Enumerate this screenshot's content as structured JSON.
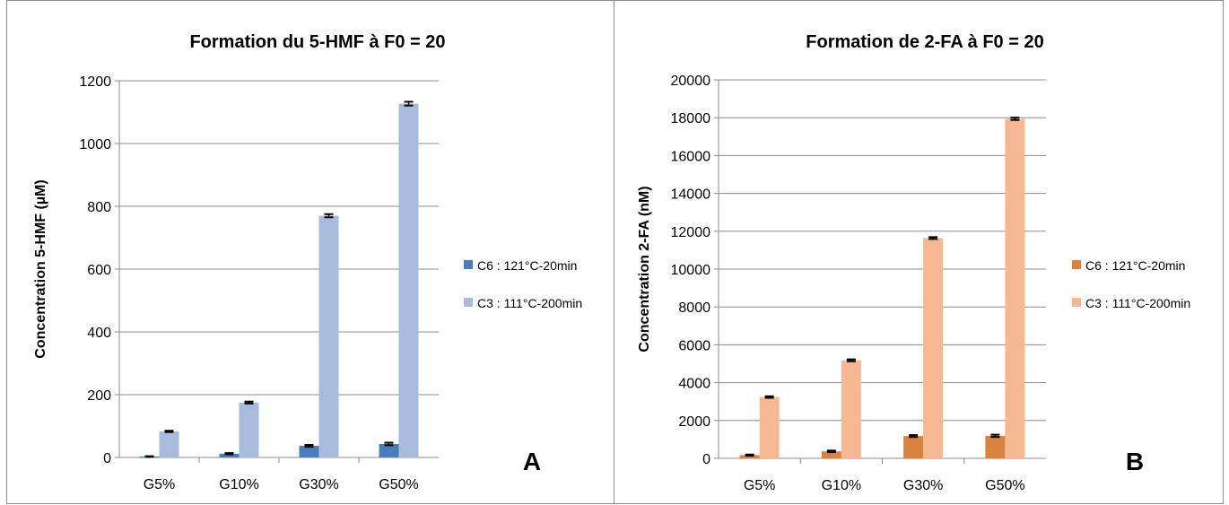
{
  "colors": {
    "a_c6": "#4a7ebb",
    "a_c3": "#a9bbdc",
    "b_c6": "#d9833f",
    "b_c3": "#f6b793",
    "grid": "#8c8c8c",
    "axis": "#8c8c8c"
  },
  "chart_data": [
    {
      "type": "bar",
      "title": "Formation du 5-HMF à F0 = 20",
      "xlabel": "",
      "ylabel": "Concentration 5-HMF (µM)",
      "categories": [
        "G5%",
        "G10%",
        "G30%",
        "G50%"
      ],
      "ylim": [
        0,
        1200
      ],
      "yticks": [
        0,
        200,
        400,
        600,
        800,
        1000,
        1200
      ],
      "grid": true,
      "legend": "right",
      "series": [
        {
          "name": "C6 : 121°C-20min",
          "values": [
            3,
            12,
            37,
            43
          ],
          "error": [
            1,
            2,
            3,
            4
          ],
          "color": "#4a7ebb"
        },
        {
          "name": "C3 : 111°C-200min",
          "values": [
            83,
            175,
            770,
            1127
          ],
          "error": [
            2,
            3,
            5,
            6
          ],
          "color": "#a9bbdc"
        }
      ],
      "annotation": "A"
    },
    {
      "type": "bar",
      "title": "Formation de 2-FA à F0 = 20",
      "xlabel": "",
      "ylabel": "Concentration 2-FA (nM)",
      "categories": [
        "G5%",
        "G10%",
        "G30%",
        "G50%"
      ],
      "ylim": [
        0,
        20000
      ],
      "yticks": [
        0,
        2000,
        4000,
        6000,
        8000,
        10000,
        12000,
        14000,
        16000,
        18000,
        20000
      ],
      "grid": true,
      "legend": "right",
      "series": [
        {
          "name": "C6 : 121°C-20min",
          "values": [
            170,
            370,
            1180,
            1190
          ],
          "error": [
            30,
            40,
            50,
            60
          ],
          "color": "#d9833f"
        },
        {
          "name": "C3 : 111°C-200min",
          "values": [
            3240,
            5180,
            11640,
            17940
          ],
          "error": [
            40,
            50,
            50,
            60
          ],
          "color": "#f6b793"
        }
      ],
      "annotation": "B"
    }
  ]
}
